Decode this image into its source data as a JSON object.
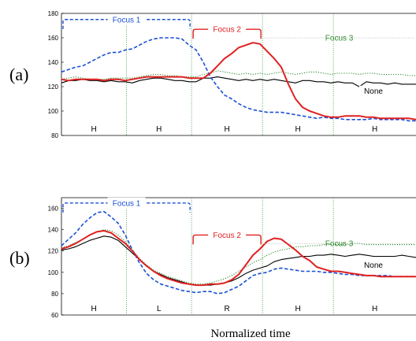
{
  "xlabel": "Normalized time",
  "colors": {
    "focus1": "#1a4fd6",
    "focus2": "#e02020",
    "focus3": "#2e8b2e",
    "none": "#000000",
    "divider": "#2e8b2e"
  },
  "chart_data": [
    {
      "type": "line",
      "panel": "(a)",
      "x": [
        0,
        0.02,
        0.04,
        0.06,
        0.08,
        0.1,
        0.12,
        0.14,
        0.16,
        0.18,
        0.2,
        0.22,
        0.24,
        0.26,
        0.28,
        0.3,
        0.32,
        0.34,
        0.36,
        0.38,
        0.4,
        0.42,
        0.44,
        0.46,
        0.48,
        0.5,
        0.52,
        0.54,
        0.56,
        0.58,
        0.6,
        0.62,
        0.64,
        0.66,
        0.68,
        0.7,
        0.72,
        0.74,
        0.76,
        0.78,
        0.8,
        0.82,
        0.84,
        0.86,
        0.88,
        0.9,
        0.92,
        0.94,
        0.96,
        0.98,
        1.0
      ],
      "ylim": [
        80,
        180
      ],
      "yticks": [
        80,
        100,
        120,
        140,
        160,
        180
      ],
      "series": [
        {
          "id": "none",
          "values": [
            123,
            125,
            125,
            126,
            125,
            125,
            124,
            125,
            124,
            124,
            123,
            125,
            126,
            127,
            127,
            126,
            125,
            125,
            124,
            124,
            127,
            127,
            128,
            127,
            126,
            125,
            126,
            125,
            126,
            125,
            126,
            125,
            124,
            123,
            125,
            125,
            124,
            124,
            123,
            124,
            123,
            123,
            120,
            124,
            123,
            123,
            122,
            123,
            122,
            122,
            122
          ]
        },
        {
          "id": "focus3",
          "values": [
            126,
            127,
            128,
            127,
            126,
            126,
            126,
            127,
            127,
            127,
            127,
            128,
            129,
            130,
            130,
            129,
            129,
            128,
            128,
            128,
            130,
            131,
            133,
            132,
            131,
            130,
            131,
            130,
            131,
            130,
            131,
            132,
            131,
            130,
            131,
            132,
            132,
            131,
            130,
            131,
            131,
            131,
            130,
            131,
            131,
            130,
            130,
            130,
            130,
            129,
            129
          ]
        },
        {
          "id": "focus1",
          "values": [
            132,
            134,
            136,
            137,
            140,
            143,
            146,
            148,
            148,
            150,
            151,
            154,
            157,
            159,
            160,
            160,
            160,
            159,
            154,
            150,
            140,
            128,
            120,
            113,
            110,
            106,
            103,
            101,
            100,
            99,
            99,
            99,
            98,
            97,
            96,
            95,
            94,
            95,
            94,
            94,
            93,
            93,
            93,
            93,
            94,
            93,
            93,
            93,
            93,
            92,
            92
          ]
        },
        {
          "id": "focus2",
          "values": [
            126,
            125,
            126,
            126,
            126,
            126,
            125,
            126,
            126,
            125,
            126,
            127,
            128,
            128,
            128,
            128,
            128,
            128,
            127,
            127,
            127,
            131,
            137,
            143,
            147,
            152,
            154,
            156,
            155,
            149,
            143,
            136,
            122,
            110,
            103,
            100,
            98,
            96,
            95,
            95,
            96,
            96,
            96,
            95,
            95,
            94,
            94,
            94,
            94,
            94,
            93
          ]
        }
      ],
      "annotations": [
        {
          "id": "focus1",
          "label": "Focus 1",
          "x0": 0.0,
          "x1": 0.367,
          "y": 175
        },
        {
          "id": "focus2",
          "label": "Focus 2",
          "x0": 0.367,
          "x1": 0.567,
          "y": 167
        },
        {
          "id": "focus3",
          "label": "Focus 3",
          "x0": 0.567,
          "x1": 1.0,
          "y": 160
        }
      ],
      "dividers": [
        0.183,
        0.367,
        0.567,
        0.767
      ],
      "segments": [
        "H",
        "H",
        "H",
        "H",
        "H"
      ],
      "series_label": {
        "text": "None",
        "x": 0.88,
        "y": 115
      }
    },
    {
      "type": "line",
      "panel": "(b)",
      "x": [
        0,
        0.02,
        0.04,
        0.06,
        0.08,
        0.1,
        0.12,
        0.14,
        0.16,
        0.18,
        0.2,
        0.22,
        0.24,
        0.26,
        0.28,
        0.3,
        0.32,
        0.34,
        0.36,
        0.38,
        0.4,
        0.42,
        0.44,
        0.46,
        0.48,
        0.5,
        0.52,
        0.54,
        0.56,
        0.58,
        0.6,
        0.62,
        0.64,
        0.66,
        0.68,
        0.7,
        0.72,
        0.74,
        0.76,
        0.78,
        0.8,
        0.82,
        0.84,
        0.86,
        0.88,
        0.9,
        0.92,
        0.94,
        0.96,
        0.98,
        1.0
      ],
      "ylim": [
        60,
        170
      ],
      "yticks": [
        60,
        80,
        100,
        120,
        140,
        160
      ],
      "series": [
        {
          "id": "none",
          "values": [
            121,
            122,
            124,
            127,
            130,
            132,
            134,
            133,
            130,
            124,
            118,
            112,
            106,
            101,
            98,
            95,
            93,
            91,
            89,
            88,
            88,
            88,
            89,
            90,
            92,
            95,
            99,
            102,
            104,
            106,
            110,
            112,
            113,
            114,
            115,
            115,
            116,
            116,
            117,
            116,
            115,
            116,
            117,
            116,
            115,
            115,
            115,
            115,
            116,
            115,
            114
          ]
        },
        {
          "id": "focus3",
          "values": [
            123,
            125,
            128,
            131,
            135,
            138,
            140,
            139,
            135,
            129,
            121,
            113,
            107,
            102,
            99,
            96,
            94,
            92,
            90,
            89,
            89,
            90,
            92,
            94,
            97,
            101,
            105,
            109,
            112,
            116,
            119,
            121,
            122,
            124,
            124,
            125,
            125,
            126,
            126,
            126,
            126,
            127,
            127,
            126,
            126,
            126,
            126,
            126,
            126,
            126,
            126
          ]
        },
        {
          "id": "focus1",
          "values": [
            125,
            131,
            137,
            145,
            151,
            156,
            157,
            152,
            146,
            135,
            121,
            109,
            99,
            93,
            89,
            87,
            85,
            83,
            82,
            81,
            82,
            82,
            80,
            81,
            84,
            87,
            92,
            97,
            99,
            100,
            103,
            104,
            103,
            102,
            101,
            101,
            101,
            100,
            100,
            99,
            98,
            98,
            97,
            97,
            97,
            97,
            97,
            96,
            96,
            96,
            96
          ]
        },
        {
          "id": "focus2",
          "values": [
            122,
            124,
            127,
            131,
            135,
            138,
            139,
            137,
            132,
            127,
            120,
            112,
            106,
            101,
            97,
            94,
            92,
            90,
            89,
            88,
            88,
            89,
            89,
            90,
            93,
            98,
            107,
            116,
            122,
            129,
            132,
            131,
            126,
            121,
            115,
            111,
            105,
            103,
            101,
            101,
            100,
            99,
            98,
            97,
            97,
            96,
            96,
            96,
            96,
            96,
            96
          ]
        }
      ],
      "annotations": [
        {
          "id": "focus1",
          "label": "Focus 1",
          "x0": 0.0,
          "x1": 0.367,
          "y": 165
        },
        {
          "id": "focus2",
          "label": "Focus 2",
          "x0": 0.367,
          "x1": 0.567,
          "y": 135
        },
        {
          "id": "focus3",
          "label": "Focus 3",
          "x0": 0.567,
          "x1": 1.0,
          "y": 127
        }
      ],
      "dividers": [
        0.183,
        0.367,
        0.567,
        0.767
      ],
      "segments": [
        "H",
        "L",
        "R",
        "H",
        "H"
      ],
      "series_label": {
        "text": "None",
        "x": 0.88,
        "y": 105
      }
    }
  ]
}
